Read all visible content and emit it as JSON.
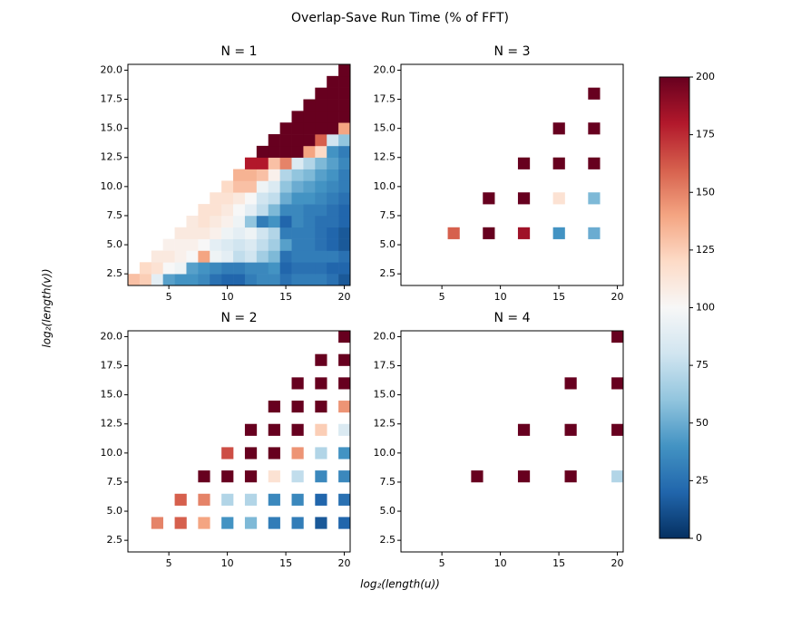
{
  "chart_data": {
    "type": "heatmap",
    "title": "Overlap-Save Run Time (% of FFT)",
    "xlabel": "log₂(length(u))",
    "ylabel": "log₂(length(v))",
    "xlim": [
      1.5,
      20.5
    ],
    "ylim": [
      1.5,
      20.5
    ],
    "xticks": [
      5,
      10,
      15,
      20
    ],
    "yticks": [
      {
        "value": 2.5,
        "label": "2.5"
      },
      {
        "value": 5,
        "label": "5.0"
      },
      {
        "value": 7.5,
        "label": "7.5"
      },
      {
        "value": 10,
        "label": "10.0"
      },
      {
        "value": 12.5,
        "label": "12.5"
      },
      {
        "value": 15,
        "label": "15.0"
      },
      {
        "value": 17.5,
        "label": "17.5"
      },
      {
        "value": 20,
        "label": "20.0"
      }
    ],
    "colorbar": {
      "lim": [
        0,
        200
      ],
      "ticks": [
        0,
        25,
        50,
        75,
        100,
        125,
        150,
        175,
        200
      ],
      "colors": [
        "#053061",
        "#2166ac",
        "#4393c3",
        "#92c5de",
        "#d1e5f0",
        "#f7f7f7",
        "#fddbc7",
        "#f4a582",
        "#d6604d",
        "#b2182b",
        "#67001f"
      ]
    },
    "panels": [
      {
        "title": "N = 1",
        "x": [
          2,
          3,
          4,
          5,
          6,
          7,
          8,
          9,
          10,
          11,
          12,
          13,
          14,
          15,
          16,
          17,
          18,
          19,
          20
        ],
        "y": [
          2,
          3,
          4,
          5,
          6,
          7,
          8,
          9,
          10,
          11,
          12,
          13,
          14,
          15,
          16,
          17,
          18,
          19,
          20
        ],
        "z": [
          [
            130,
            125,
            90,
            45,
            40,
            40,
            35,
            25,
            20,
            20,
            30,
            35,
            35,
            25,
            30,
            30,
            30,
            25,
            15
          ],
          [
            null,
            120,
            115,
            100,
            95,
            45,
            40,
            35,
            30,
            30,
            35,
            35,
            40,
            20,
            25,
            25,
            25,
            20,
            20
          ],
          [
            null,
            null,
            110,
            110,
            105,
            100,
            140,
            95,
            90,
            75,
            80,
            65,
            55,
            25,
            30,
            30,
            30,
            30,
            25
          ],
          [
            null,
            null,
            null,
            105,
            105,
            105,
            100,
            90,
            85,
            80,
            85,
            75,
            65,
            45,
            30,
            30,
            25,
            20,
            15
          ],
          [
            null,
            null,
            null,
            null,
            110,
            110,
            110,
            105,
            95,
            90,
            95,
            80,
            70,
            30,
            30,
            30,
            25,
            20,
            15
          ],
          [
            null,
            null,
            null,
            null,
            null,
            110,
            115,
            110,
            105,
            95,
            60,
            30,
            40,
            20,
            35,
            30,
            25,
            25,
            20
          ],
          [
            null,
            null,
            null,
            null,
            null,
            null,
            115,
            115,
            110,
            100,
            90,
            75,
            55,
            35,
            35,
            30,
            30,
            25,
            20
          ],
          [
            null,
            null,
            null,
            null,
            null,
            null,
            null,
            115,
            115,
            110,
            100,
            80,
            75,
            50,
            40,
            40,
            35,
            30,
            25
          ],
          [
            null,
            null,
            null,
            null,
            null,
            null,
            null,
            null,
            120,
            130,
            130,
            95,
            85,
            60,
            50,
            45,
            40,
            35,
            30
          ],
          [
            null,
            null,
            null,
            null,
            null,
            null,
            null,
            null,
            null,
            135,
            135,
            130,
            105,
            70,
            60,
            55,
            45,
            40,
            30
          ],
          [
            null,
            null,
            null,
            null,
            null,
            null,
            null,
            null,
            null,
            null,
            180,
            180,
            130,
            150,
            85,
            70,
            55,
            45,
            35
          ],
          [
            null,
            null,
            null,
            null,
            null,
            null,
            null,
            null,
            null,
            null,
            null,
            200,
            200,
            200,
            200,
            140,
            120,
            40,
            30
          ],
          [
            null,
            null,
            null,
            null,
            null,
            null,
            null,
            null,
            null,
            null,
            null,
            null,
            200,
            200,
            200,
            200,
            160,
            80,
            60
          ],
          [
            null,
            null,
            null,
            null,
            null,
            null,
            null,
            null,
            null,
            null,
            null,
            null,
            null,
            200,
            200,
            200,
            200,
            200,
            140
          ],
          [
            null,
            null,
            null,
            null,
            null,
            null,
            null,
            null,
            null,
            null,
            null,
            null,
            null,
            null,
            200,
            200,
            200,
            200,
            200
          ],
          [
            null,
            null,
            null,
            null,
            null,
            null,
            null,
            null,
            null,
            null,
            null,
            null,
            null,
            null,
            null,
            200,
            200,
            200,
            200
          ],
          [
            null,
            null,
            null,
            null,
            null,
            null,
            null,
            null,
            null,
            null,
            null,
            null,
            null,
            null,
            null,
            null,
            200,
            200,
            200
          ],
          [
            null,
            null,
            null,
            null,
            null,
            null,
            null,
            null,
            null,
            null,
            null,
            null,
            null,
            null,
            null,
            null,
            null,
            200,
            200
          ],
          [
            null,
            null,
            null,
            null,
            null,
            null,
            null,
            null,
            null,
            null,
            null,
            null,
            null,
            null,
            null,
            null,
            null,
            null,
            200
          ]
        ]
      },
      {
        "title": "N = 3",
        "x": [
          6,
          9,
          12,
          15,
          18
        ],
        "y": [
          6,
          9,
          12,
          15,
          18
        ],
        "z": [
          [
            160,
            200,
            185,
            40,
            50
          ],
          [
            null,
            200,
            200,
            115,
            55
          ],
          [
            null,
            null,
            200,
            200,
            200
          ],
          [
            null,
            null,
            null,
            200,
            200
          ],
          [
            null,
            null,
            null,
            null,
            200
          ]
        ]
      },
      {
        "title": "N = 2",
        "x": [
          4,
          6,
          8,
          10,
          12,
          14,
          16,
          18,
          20
        ],
        "y": [
          4,
          6,
          8,
          10,
          12,
          14,
          16,
          18,
          20
        ],
        "z": [
          [
            150,
            160,
            140,
            40,
            55,
            30,
            30,
            15,
            20
          ],
          [
            null,
            160,
            150,
            70,
            70,
            35,
            35,
            20,
            25
          ],
          [
            null,
            null,
            200,
            200,
            200,
            115,
            75,
            35,
            35
          ],
          [
            null,
            null,
            null,
            165,
            200,
            200,
            145,
            70,
            40
          ],
          [
            null,
            null,
            null,
            null,
            200,
            200,
            200,
            125,
            85
          ],
          [
            null,
            null,
            null,
            null,
            null,
            200,
            200,
            200,
            145
          ],
          [
            null,
            null,
            null,
            null,
            null,
            null,
            200,
            200,
            200
          ],
          [
            null,
            null,
            null,
            null,
            null,
            null,
            null,
            200,
            200
          ],
          [
            null,
            null,
            null,
            null,
            null,
            null,
            null,
            null,
            200
          ]
        ]
      },
      {
        "title": "N = 4",
        "x": [
          8,
          12,
          16,
          20
        ],
        "y": [
          8,
          12,
          16,
          20
        ],
        "z": [
          [
            200,
            200,
            200,
            70
          ],
          [
            null,
            200,
            200,
            200
          ],
          [
            null,
            null,
            200,
            200
          ],
          [
            null,
            null,
            null,
            200
          ]
        ]
      }
    ]
  }
}
